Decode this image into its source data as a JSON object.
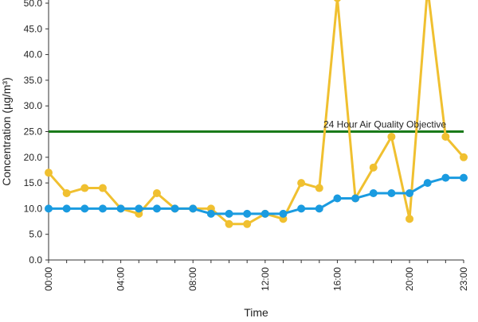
{
  "chart_data": {
    "type": "line",
    "title": "",
    "xlabel": "Time",
    "ylabel": "Concentration (µg/m³)",
    "ylim": [
      0,
      50
    ],
    "y_ticks": [
      "0.0",
      "5.0",
      "10.0",
      "15.0",
      "20.0",
      "25.0",
      "30.0",
      "35.0",
      "40.0",
      "45.0",
      "50.0"
    ],
    "x": [
      "00:00",
      "01:00",
      "02:00",
      "03:00",
      "04:00",
      "05:00",
      "06:00",
      "07:00",
      "08:00",
      "09:00",
      "10:00",
      "11:00",
      "12:00",
      "13:00",
      "14:00",
      "15:00",
      "16:00",
      "17:00",
      "18:00",
      "19:00",
      "20:00",
      "21:00",
      "22:00",
      "23:00"
    ],
    "x_tick_labels": [
      "00:00",
      "04:00",
      "08:00",
      "12:00",
      "16:00",
      "20:00",
      "23:00"
    ],
    "grid": false,
    "series": [
      {
        "color": "#f0c030",
        "values": [
          17,
          13,
          14,
          14,
          10,
          9,
          13,
          10,
          10,
          10,
          7,
          7,
          9,
          8,
          15,
          14,
          51,
          12,
          18,
          24,
          8,
          53,
          24,
          20
        ]
      },
      {
        "color": "#1a9be0",
        "values": [
          10,
          10,
          10,
          10,
          10,
          10,
          10,
          10,
          10,
          9,
          9,
          9,
          9,
          9,
          10,
          10,
          12,
          12,
          13,
          13,
          13,
          15,
          16,
          16
        ]
      }
    ],
    "reference_line": {
      "label": "24 Hour Air Quality Objective",
      "value": 25,
      "color": "#1a7a1a"
    }
  }
}
